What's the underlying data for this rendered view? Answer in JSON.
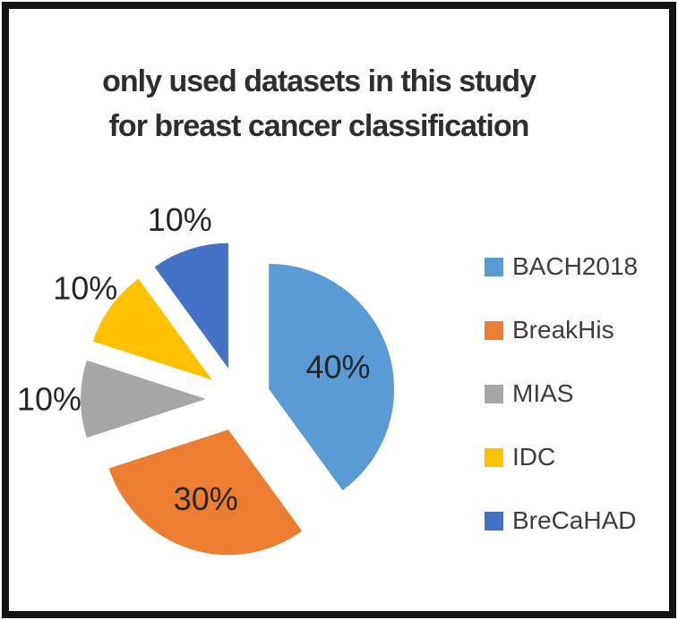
{
  "chart_data": {
    "type": "pie",
    "title": "only used datasets in this study for breast cancer classification",
    "title_lines": [
      "only used datasets in this study",
      "for breast cancer classification"
    ],
    "categories": [
      "BACH2018",
      "BreakHis",
      "MIAS",
      "IDC",
      "BreCaHAD"
    ],
    "values": [
      40,
      30,
      10,
      10,
      10
    ],
    "labels": [
      "40%",
      "30%",
      "10%",
      "10%",
      "10%"
    ],
    "colors": [
      "#5B9BD5",
      "#ED7D31",
      "#A6A6A6",
      "#FFC000",
      "#4472C4"
    ],
    "legend_position": "right",
    "legend_entries": [
      "BACH2018",
      "BreakHis",
      "MIAS",
      "IDC",
      "BreCaHAD"
    ],
    "exploded": true,
    "start_angle_deg": 0,
    "direction": "clockwise",
    "title_color": "#2e2e2e",
    "label_color": "#262626",
    "frame_color": "#141414"
  }
}
